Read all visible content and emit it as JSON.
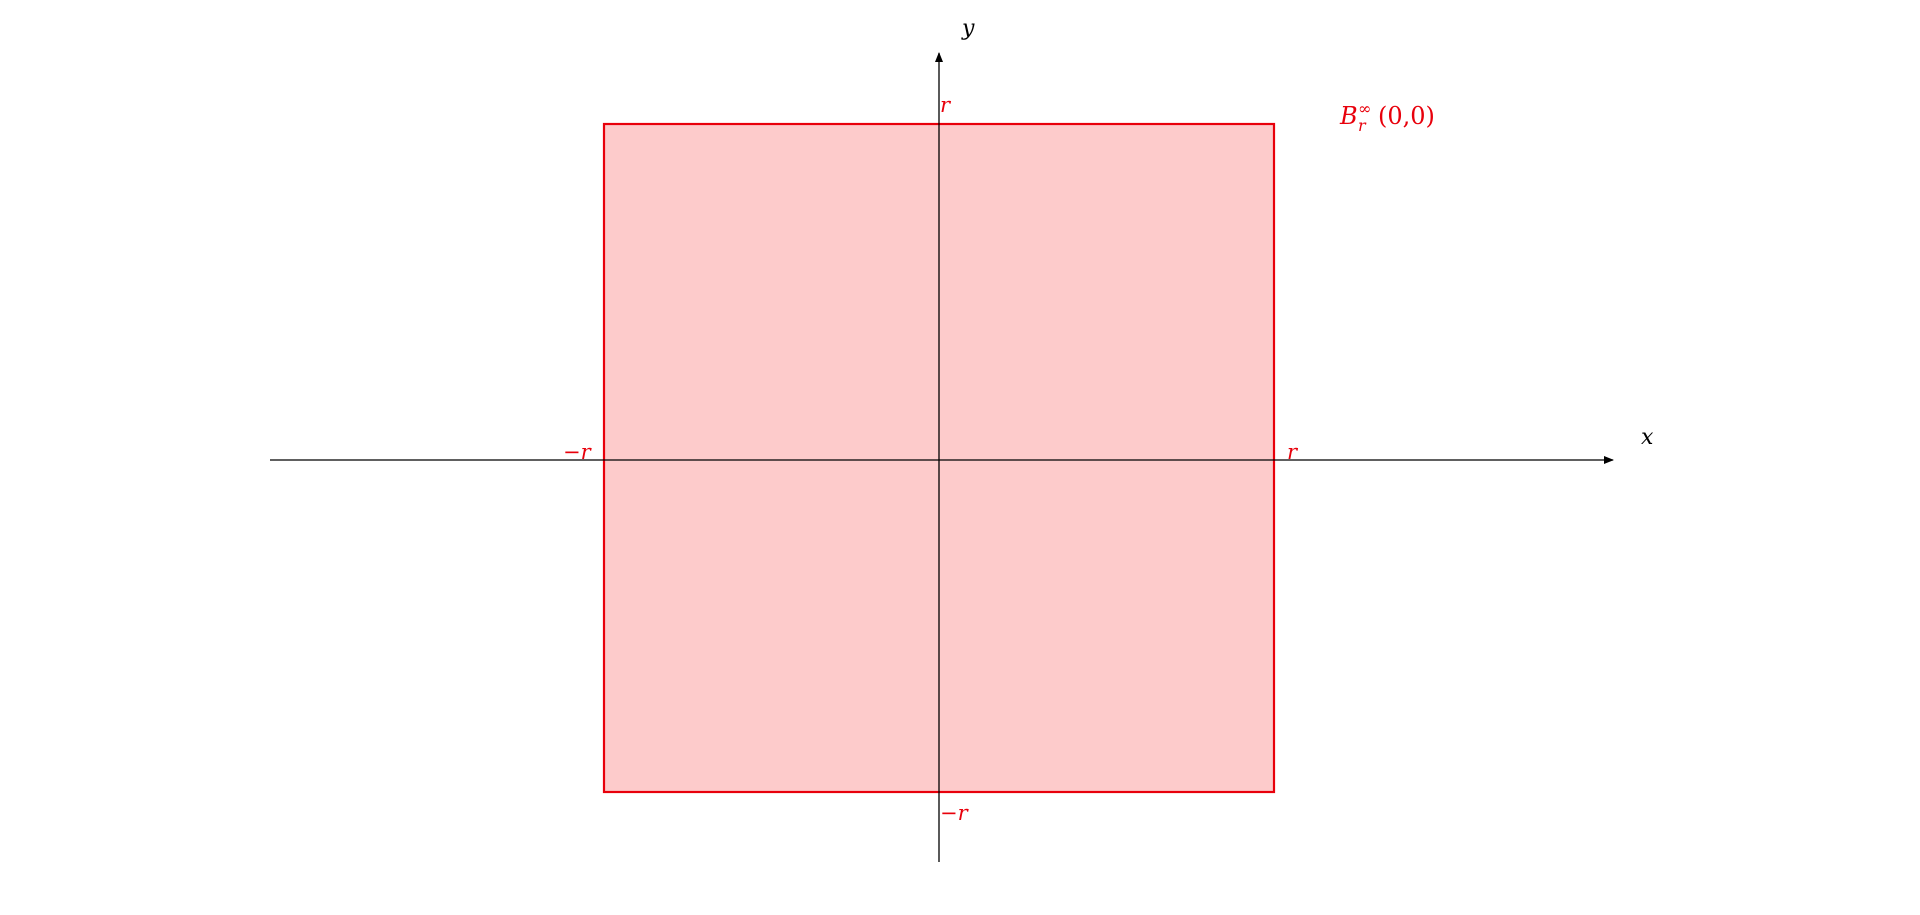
{
  "diagram": {
    "axes": {
      "x_label": "x",
      "y_label": "y",
      "color": "#000000"
    },
    "ball": {
      "label_base": "B",
      "label_superscript": "∞",
      "label_subscript": "r",
      "label_argument": "(0,0)",
      "stroke_color": "#e8000b",
      "fill_color": "#fdcbcb",
      "label_color": "#e8000b"
    },
    "ticks": {
      "x_positive": "r",
      "x_negative": "−r",
      "y_positive": "r",
      "y_negative": "−r",
      "color": "#e8000b"
    }
  }
}
